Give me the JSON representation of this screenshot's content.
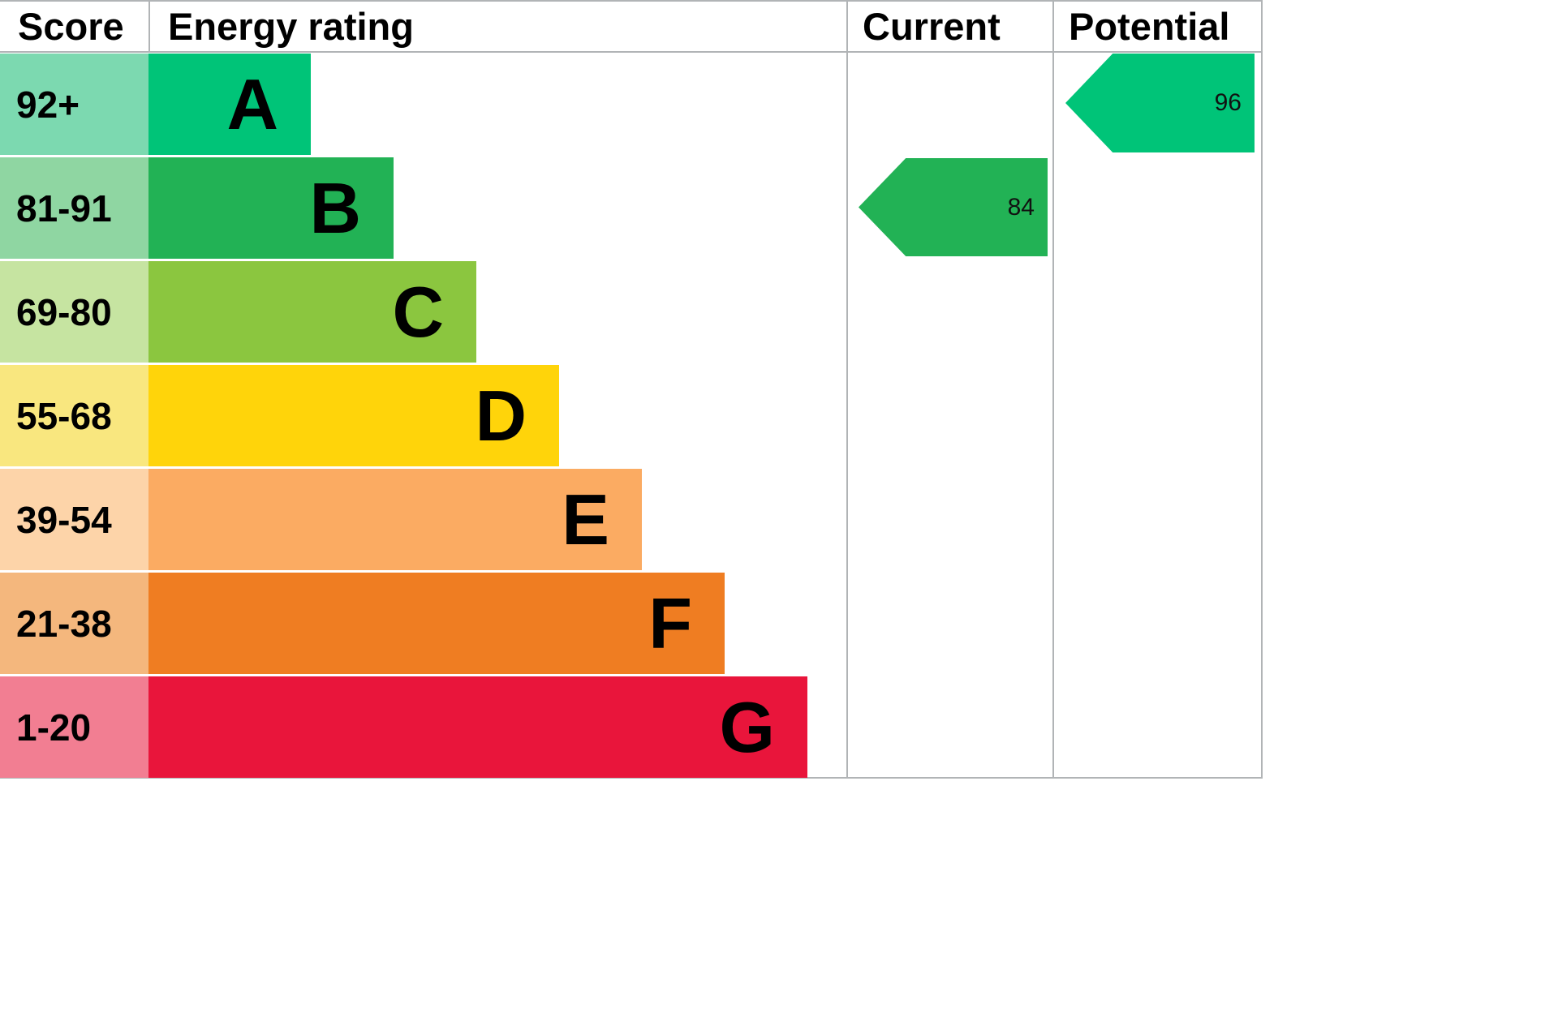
{
  "header": {
    "score": "Score",
    "energy_rating": "Energy rating",
    "current": "Current",
    "potential": "Potential"
  },
  "bands": [
    {
      "letter": "A",
      "score": "92+",
      "color": "#00c478",
      "tint": "#7cd9b0"
    },
    {
      "letter": "B",
      "score": "81-91",
      "color": "#22b255",
      "tint": "#8fd6a2"
    },
    {
      "letter": "C",
      "score": "69-80",
      "color": "#8bc63f",
      "tint": "#c6e4a1"
    },
    {
      "letter": "D",
      "score": "55-68",
      "color": "#ffd40a",
      "tint": "#f9e77f"
    },
    {
      "letter": "E",
      "score": "39-54",
      "color": "#fbab62",
      "tint": "#fdd4a9"
    },
    {
      "letter": "F",
      "score": "21-38",
      "color": "#ef7d22",
      "tint": "#f4b77d"
    },
    {
      "letter": "G",
      "score": "1-20",
      "color": "#e9153b",
      "tint": "#f27e92"
    }
  ],
  "current": {
    "value": "84",
    "color": "#22b255"
  },
  "potential": {
    "value": "96",
    "color": "#00c478"
  },
  "chart_data": {
    "type": "bar",
    "title": "EPC Energy rating",
    "categories": [
      "A",
      "B",
      "C",
      "D",
      "E",
      "F",
      "G"
    ],
    "score_ranges": [
      "92+",
      "81-91",
      "69-80",
      "55-68",
      "39-54",
      "21-38",
      "1-20"
    ],
    "column_headers": [
      "Score",
      "Energy rating",
      "Current",
      "Potential"
    ],
    "bar_relative_widths": [
      1.0,
      1.51,
      2.02,
      2.53,
      3.04,
      3.55,
      4.06
    ],
    "band_colors": [
      "#00c478",
      "#22b255",
      "#8bc63f",
      "#ffd40a",
      "#fbab62",
      "#ef7d22",
      "#e9153b"
    ],
    "current": {
      "value": 84,
      "band": "B"
    },
    "potential": {
      "value": 96,
      "band": "A"
    },
    "grid": false,
    "legend_position": "none"
  }
}
